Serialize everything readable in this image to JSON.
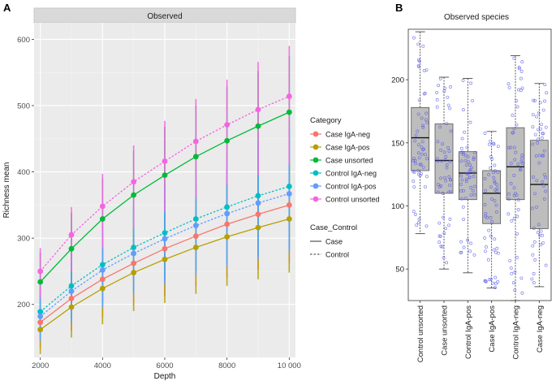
{
  "panel_labels": [
    "A",
    "B"
  ],
  "chart_data": [
    {
      "type": "line",
      "strip_title": "Observed",
      "xlabel": "Depth",
      "ylabel": "Richness mean",
      "xlim": [
        1800,
        10200
      ],
      "ylim": [
        120,
        625
      ],
      "x_ticks": [
        2000,
        4000,
        6000,
        8000,
        10000
      ],
      "x_tick_labels": [
        "2000",
        "4000",
        "6000",
        "8000",
        "10 000"
      ],
      "y_ticks": [
        200,
        300,
        400,
        500,
        600
      ],
      "y_tick_labels": [
        "200",
        "300",
        "400",
        "500",
        "600"
      ],
      "grid": true,
      "x": [
        2000,
        3000,
        4000,
        5000,
        6000,
        7000,
        8000,
        9000,
        10000
      ],
      "series": [
        {
          "name": "Case IgA-neg",
          "color": "#F8766D",
          "line": "solid",
          "values": [
            173,
            209,
            238,
            262,
            284,
            303,
            321,
            336,
            350
          ],
          "err_low": [
            135,
            160,
            180,
            198,
            212,
            228,
            240,
            252,
            262
          ],
          "err_high": [
            218,
            262,
            300,
            330,
            358,
            380,
            400,
            418,
            432
          ]
        },
        {
          "name": "Case IgA-pos",
          "color": "#B79F00",
          "line": "solid",
          "values": [
            162,
            196,
            224,
            248,
            268,
            286,
            302,
            316,
            329
          ],
          "err_low": [
            125,
            150,
            170,
            190,
            202,
            216,
            228,
            238,
            248
          ],
          "err_high": [
            205,
            248,
            284,
            315,
            340,
            362,
            382,
            400,
            415
          ]
        },
        {
          "name": "Case unsorted",
          "color": "#00BA38",
          "line": "solid",
          "values": [
            234,
            284,
            329,
            365,
            395,
            423,
            447,
            469,
            490
          ],
          "err_low": [
            190,
            225,
            260,
            290,
            312,
            332,
            350,
            365,
            380
          ],
          "err_high": [
            278,
            338,
            390,
            432,
            468,
            500,
            528,
            552,
            575
          ]
        },
        {
          "name": "Control IgA-neg",
          "color": "#00BFC4",
          "line": "dotted",
          "values": [
            189,
            228,
            260,
            286,
            308,
            329,
            347,
            364,
            378
          ],
          "err_low": [
            150,
            178,
            200,
            220,
            236,
            250,
            262,
            274,
            284
          ],
          "err_high": [
            232,
            280,
            318,
            352,
            380,
            405,
            428,
            448,
            468
          ]
        },
        {
          "name": "Control IgA-pos",
          "color": "#619CFF",
          "line": "dotted",
          "values": [
            182,
            220,
            252,
            277,
            299,
            319,
            337,
            353,
            367
          ],
          "err_low": [
            145,
            172,
            195,
            215,
            230,
            244,
            256,
            268,
            278
          ],
          "err_high": [
            225,
            270,
            308,
            342,
            368,
            392,
            414,
            434,
            452
          ]
        },
        {
          "name": "Control unsorted",
          "color": "#F564E3",
          "line": "dotted",
          "values": [
            250,
            305,
            348,
            385,
            416,
            446,
            471,
            494,
            514
          ],
          "err_low": [
            210,
            250,
            285,
            315,
            340,
            360,
            380,
            395,
            410
          ],
          "err_high": [
            285,
            347,
            397,
            440,
            477,
            510,
            539,
            566,
            590
          ]
        }
      ],
      "legend": {
        "position": "right",
        "category_title": "Category",
        "category_items": [
          "Case IgA-neg",
          "Case IgA-pos",
          "Case unsorted",
          "Control IgA-neg",
          "Control IgA-pos",
          "Control unsorted"
        ],
        "linetype_title": "Case_Control",
        "linetype_items": [
          "Case",
          "Control"
        ]
      }
    },
    {
      "type": "box",
      "title": "Observed species",
      "ylim": [
        25,
        240
      ],
      "y_ticks": [
        50,
        100,
        150,
        200
      ],
      "y_tick_labels": [
        "50",
        "100",
        "150",
        "200"
      ],
      "grid": false,
      "box_fill": "#bdbdbd",
      "point_color": "#5b5be8",
      "categories": [
        "Control unsorted",
        "Case unsorted",
        "Control IgA-pos",
        "Case IgA-pos",
        "Control IgA-neg",
        "Case IgA-neg"
      ],
      "boxes": [
        {
          "min": 78,
          "q1": 128,
          "median": 154,
          "q3": 178,
          "max": 238
        },
        {
          "min": 50,
          "q1": 110,
          "median": 136,
          "q3": 165,
          "max": 202
        },
        {
          "min": 47,
          "q1": 105,
          "median": 126,
          "q3": 143,
          "max": 201
        },
        {
          "min": 35,
          "q1": 86,
          "median": 110,
          "q3": 128,
          "max": 159
        },
        {
          "min": 25,
          "q1": 105,
          "median": 131,
          "q3": 162,
          "max": 219
        },
        {
          "min": 36,
          "q1": 82,
          "median": 117,
          "q3": 152,
          "max": 197
        }
      ],
      "points_per_group": 55
    }
  ]
}
